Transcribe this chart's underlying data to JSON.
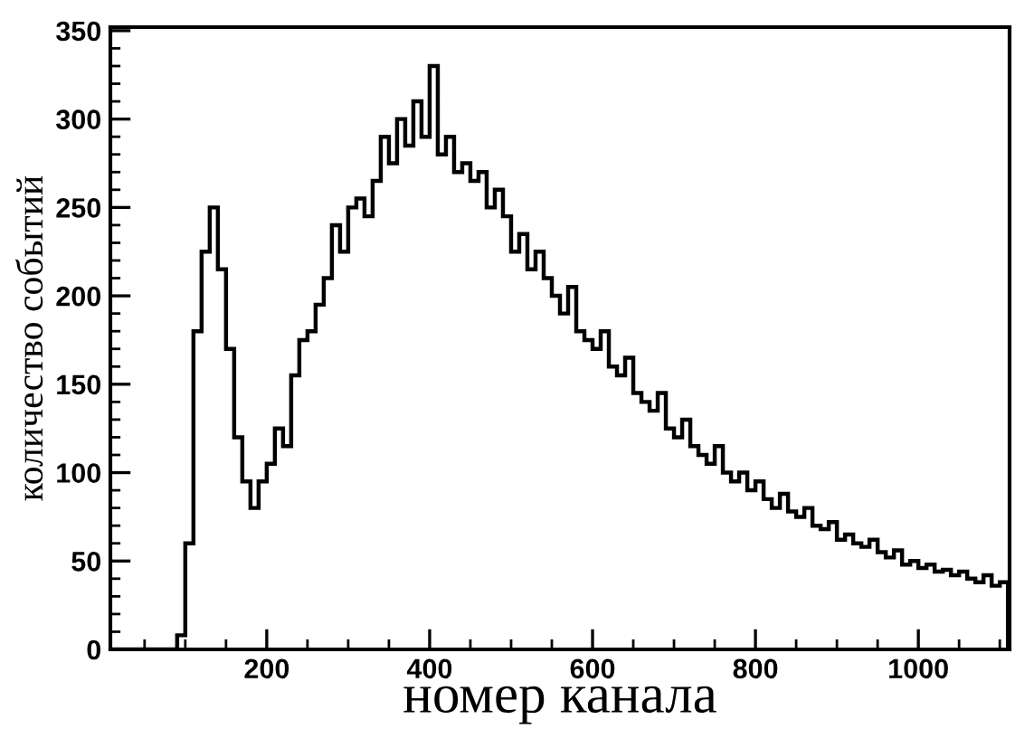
{
  "chart_data": {
    "type": "histogram",
    "xlabel": "номер канала",
    "ylabel": "количество событий",
    "bins": [
      10,
      20,
      30,
      40,
      50,
      60,
      70,
      80,
      90,
      100,
      110,
      120,
      130,
      140,
      150,
      160,
      170,
      180,
      190,
      200,
      210,
      220,
      230,
      240,
      250,
      260,
      270,
      280,
      290,
      300,
      310,
      320,
      330,
      340,
      350,
      360,
      370,
      380,
      390,
      400,
      410,
      420,
      430,
      440,
      450,
      460,
      470,
      480,
      490,
      500,
      510,
      520,
      530,
      540,
      550,
      560,
      570,
      580,
      590,
      600,
      610,
      620,
      630,
      640,
      650,
      660,
      670,
      680,
      690,
      700,
      710,
      720,
      730,
      740,
      750,
      760,
      770,
      780,
      790,
      800,
      810,
      820,
      830,
      840,
      850,
      860,
      870,
      880,
      890,
      900,
      910,
      920,
      930,
      940,
      950,
      960,
      970,
      980,
      990,
      1000,
      1010,
      1020,
      1030,
      1040,
      1050,
      1060,
      1070,
      1080,
      1090,
      1100,
      1110
    ],
    "values": [
      0,
      0,
      0,
      0,
      0,
      0,
      0,
      0,
      8,
      60,
      180,
      225,
      250,
      215,
      170,
      120,
      95,
      80,
      95,
      105,
      125,
      115,
      155,
      175,
      180,
      195,
      210,
      240,
      225,
      250,
      255,
      245,
      265,
      290,
      275,
      300,
      285,
      310,
      290,
      330,
      280,
      290,
      270,
      275,
      265,
      270,
      250,
      260,
      245,
      225,
      235,
      215,
      225,
      210,
      200,
      190,
      205,
      180,
      175,
      170,
      180,
      160,
      155,
      165,
      145,
      140,
      135,
      145,
      125,
      120,
      130,
      115,
      110,
      105,
      115,
      100,
      95,
      100,
      90,
      95,
      85,
      80,
      88,
      78,
      75,
      80,
      70,
      68,
      72,
      62,
      65,
      60,
      58,
      62,
      55,
      52,
      56,
      48,
      50,
      46,
      48,
      44,
      45,
      42,
      44,
      40,
      38,
      42,
      36,
      38
    ],
    "color": "#000000",
    "xlim": [
      8,
      1112
    ],
    "ylim": [
      0,
      352
    ],
    "xticks": [
      {
        "value": 50,
        "label": null
      },
      {
        "value": 100,
        "label": null
      },
      {
        "value": 150,
        "label": null
      },
      200,
      {
        "value": 250,
        "label": null
      },
      {
        "value": 300,
        "label": null
      },
      {
        "value": 350,
        "label": null
      },
      400,
      {
        "value": 450,
        "label": null
      },
      {
        "value": 500,
        "label": null
      },
      {
        "value": 550,
        "label": null
      },
      600,
      {
        "value": 650,
        "label": null
      },
      {
        "value": 700,
        "label": null
      },
      {
        "value": 750,
        "label": null
      },
      800,
      {
        "value": 850,
        "label": null
      },
      {
        "value": 900,
        "label": null
      },
      {
        "value": 950,
        "label": null
      },
      1000,
      {
        "value": 1050,
        "label": null
      },
      {
        "value": 1100,
        "label": null
      }
    ],
    "yticks": [
      0,
      {
        "value": 10,
        "label": null
      },
      {
        "value": 20,
        "label": null
      },
      {
        "value": 30,
        "label": null
      },
      {
        "value": 40,
        "label": null
      },
      50,
      {
        "value": 60,
        "label": null
      },
      {
        "value": 70,
        "label": null
      },
      {
        "value": 80,
        "label": null
      },
      {
        "value": 90,
        "label": null
      },
      100,
      {
        "value": 110,
        "label": null
      },
      {
        "value": 120,
        "label": null
      },
      {
        "value": 130,
        "label": null
      },
      {
        "value": 140,
        "label": null
      },
      150,
      {
        "value": 160,
        "label": null
      },
      {
        "value": 170,
        "label": null
      },
      {
        "value": 180,
        "label": null
      },
      {
        "value": 190,
        "label": null
      },
      200,
      {
        "value": 210,
        "label": null
      },
      {
        "value": 220,
        "label": null
      },
      {
        "value": 230,
        "label": null
      },
      {
        "value": 240,
        "label": null
      },
      250,
      {
        "value": 260,
        "label": null
      },
      {
        "value": 270,
        "label": null
      },
      {
        "value": 280,
        "label": null
      },
      {
        "value": 290,
        "label": null
      },
      300,
      {
        "value": 310,
        "label": null
      },
      {
        "value": 320,
        "label": null
      },
      {
        "value": 330,
        "label": null
      },
      {
        "value": 340,
        "label": null
      },
      350
    ],
    "grid": false,
    "legend": false
  }
}
